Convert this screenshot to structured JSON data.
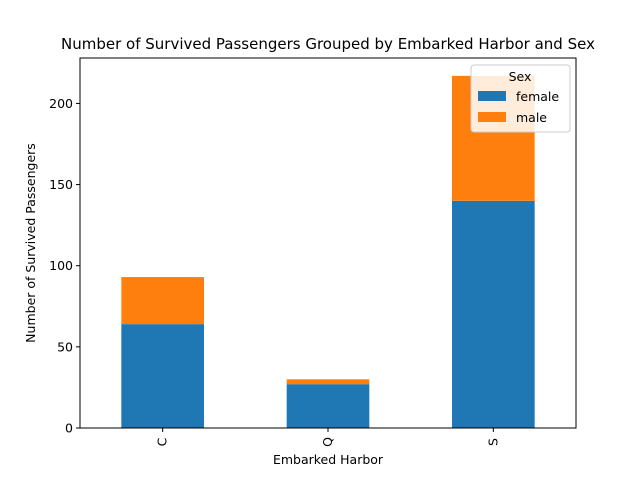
{
  "chart_data": {
    "type": "bar",
    "stacked": true,
    "title": "Number of Survived Passengers Grouped by Embarked Harbor and Sex",
    "xlabel": "Embarked Harbor",
    "ylabel": "Number of Survived Passengers",
    "categories": [
      "C",
      "Q",
      "S"
    ],
    "series": [
      {
        "name": "female",
        "values": [
          64,
          27,
          140
        ],
        "color": "#1f77b4"
      },
      {
        "name": "male",
        "values": [
          29,
          3,
          77
        ],
        "color": "#ff7f0e"
      }
    ],
    "ylim": [
      0,
      228
    ],
    "yticks": [
      0,
      50,
      100,
      150,
      200
    ],
    "legend": {
      "title": "Sex",
      "position": "top-right"
    },
    "grid": false
  }
}
